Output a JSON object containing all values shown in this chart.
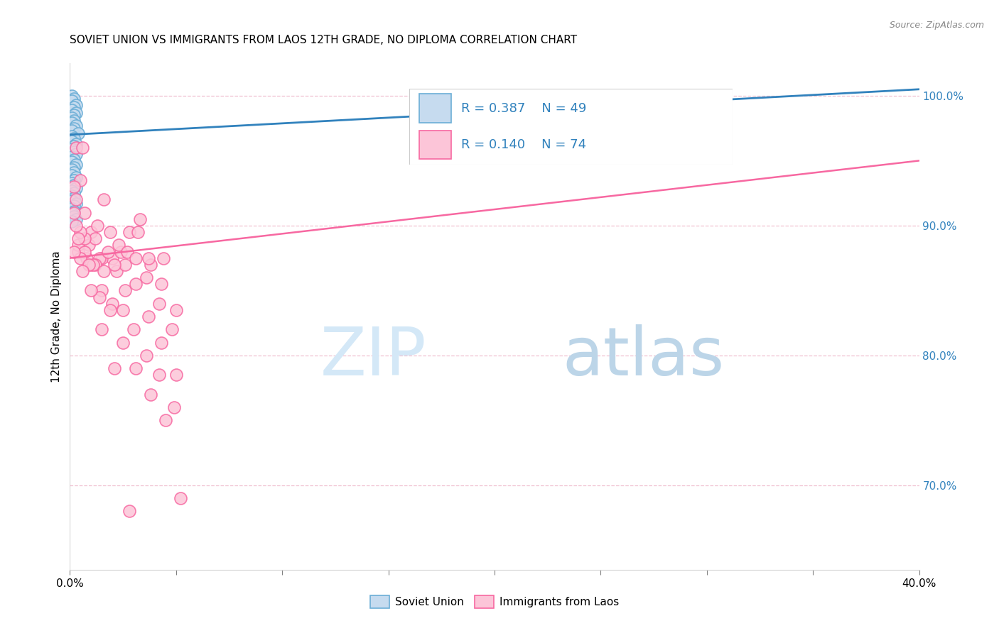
{
  "title": "SOVIET UNION VS IMMIGRANTS FROM LAOS 12TH GRADE, NO DIPLOMA CORRELATION CHART",
  "source": "Source: ZipAtlas.com",
  "ylabel": "12th Grade, No Diploma",
  "xmin": 0.0,
  "xmax": 0.4,
  "ymin": 0.635,
  "ymax": 1.025,
  "yticks_right": [
    0.7,
    0.8,
    0.9,
    1.0
  ],
  "ytick_labels_right": [
    "70.0%",
    "80.0%",
    "90.0%",
    "100.0%"
  ],
  "legend_R1": "R = 0.387",
  "legend_N1": "N = 49",
  "legend_R2": "R = 0.140",
  "legend_N2": "N = 74",
  "blue_scatter_face": "#c6dbef",
  "blue_scatter_edge": "#6baed6",
  "pink_scatter_face": "#fcc5d8",
  "pink_scatter_edge": "#f768a1",
  "trend_blue_color": "#3182bd",
  "trend_pink_color": "#f768a1",
  "legend_text_color": "#3182bd",
  "watermark_zip_color": "#d4e8f7",
  "watermark_atlas_color": "#bcd5e8",
  "background_color": "#ffffff",
  "grid_color": "#f0c0d0",
  "soviet_x": [
    0.001,
    0.002,
    0.001,
    0.003,
    0.002,
    0.001,
    0.003,
    0.002,
    0.001,
    0.002,
    0.001,
    0.003,
    0.002,
    0.001,
    0.004,
    0.001,
    0.002,
    0.001,
    0.003,
    0.002,
    0.001,
    0.002,
    0.003,
    0.001,
    0.002,
    0.001,
    0.003,
    0.002,
    0.001,
    0.002,
    0.001,
    0.003,
    0.002,
    0.001,
    0.002,
    0.003,
    0.001,
    0.002,
    0.001,
    0.002,
    0.001,
    0.003,
    0.002,
    0.001,
    0.002,
    0.001,
    0.002,
    0.003,
    0.001
  ],
  "soviet_y": [
    1.0,
    0.998,
    0.996,
    0.993,
    0.991,
    0.989,
    0.987,
    0.985,
    0.983,
    0.981,
    0.979,
    0.977,
    0.975,
    0.973,
    0.971,
    0.969,
    0.967,
    0.965,
    0.963,
    0.961,
    0.959,
    0.957,
    0.955,
    0.953,
    0.951,
    0.949,
    0.947,
    0.945,
    0.943,
    0.941,
    0.939,
    0.937,
    0.935,
    0.933,
    0.931,
    0.929,
    0.927,
    0.925,
    0.923,
    0.921,
    0.919,
    0.917,
    0.915,
    0.913,
    0.911,
    0.909,
    0.907,
    0.905,
    0.903
  ],
  "laos_x": [
    0.003,
    0.005,
    0.007,
    0.01,
    0.013,
    0.016,
    0.02,
    0.024,
    0.028,
    0.033,
    0.038,
    0.044,
    0.004,
    0.006,
    0.009,
    0.012,
    0.015,
    0.019,
    0.023,
    0.027,
    0.032,
    0.037,
    0.043,
    0.05,
    0.002,
    0.004,
    0.007,
    0.01,
    0.014,
    0.018,
    0.022,
    0.026,
    0.031,
    0.036,
    0.042,
    0.048,
    0.003,
    0.005,
    0.008,
    0.012,
    0.016,
    0.021,
    0.026,
    0.031,
    0.037,
    0.043,
    0.05,
    0.002,
    0.004,
    0.007,
    0.011,
    0.015,
    0.02,
    0.025,
    0.03,
    0.036,
    0.042,
    0.049,
    0.003,
    0.005,
    0.009,
    0.014,
    0.019,
    0.025,
    0.031,
    0.038,
    0.045,
    0.052,
    0.002,
    0.006,
    0.01,
    0.015,
    0.021,
    0.028
  ],
  "laos_y": [
    0.96,
    0.935,
    0.91,
    0.895,
    0.9,
    0.92,
    0.875,
    0.88,
    0.895,
    0.905,
    0.87,
    0.875,
    0.88,
    0.96,
    0.885,
    0.89,
    0.875,
    0.895,
    0.885,
    0.88,
    0.895,
    0.875,
    0.855,
    0.835,
    0.93,
    0.885,
    0.89,
    0.87,
    0.875,
    0.88,
    0.865,
    0.87,
    0.875,
    0.86,
    0.84,
    0.82,
    0.92,
    0.895,
    0.875,
    0.87,
    0.865,
    0.87,
    0.85,
    0.855,
    0.83,
    0.81,
    0.785,
    0.91,
    0.89,
    0.88,
    0.87,
    0.85,
    0.84,
    0.835,
    0.82,
    0.8,
    0.785,
    0.76,
    0.9,
    0.875,
    0.87,
    0.845,
    0.835,
    0.81,
    0.79,
    0.77,
    0.75,
    0.69,
    0.88,
    0.865,
    0.85,
    0.82,
    0.79,
    0.68
  ],
  "blue_trend_x": [
    0.0,
    0.4
  ],
  "blue_trend_y": [
    0.97,
    1.005
  ],
  "pink_trend_x": [
    0.0,
    0.4
  ],
  "pink_trend_y": [
    0.875,
    0.95
  ]
}
